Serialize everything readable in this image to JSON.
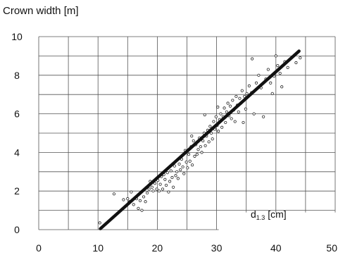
{
  "chart_data": {
    "type": "scatter",
    "ylabel": "Crown width [m]",
    "xlabel_main": "d",
    "xlabel_sub": "1.3",
    "xlabel_unit": " [cm]",
    "xlim": [
      0,
      50
    ],
    "ylim": [
      0,
      10
    ],
    "x_ticks": [
      0,
      10,
      20,
      30,
      40,
      50
    ],
    "y_ticks": [
      0,
      2,
      4,
      6,
      8,
      10
    ],
    "grid": true,
    "fit_line": {
      "x": [
        10.4,
        43.9
      ],
      "y": [
        0.05,
        9.25
      ]
    },
    "points": [
      [
        10.3,
        0.35
      ],
      [
        12.7,
        1.85
      ],
      [
        14.3,
        1.55
      ],
      [
        15.0,
        1.6
      ],
      [
        15.3,
        1.45
      ],
      [
        15.6,
        1.95
      ],
      [
        16.0,
        1.3
      ],
      [
        16.5,
        1.6
      ],
      [
        16.8,
        1.1
      ],
      [
        17.1,
        1.5
      ],
      [
        17.4,
        1.0
      ],
      [
        17.7,
        1.7
      ],
      [
        18.0,
        1.45
      ],
      [
        18.3,
        1.9
      ],
      [
        18.6,
        2.1
      ],
      [
        18.8,
        2.5
      ],
      [
        19.1,
        2.2
      ],
      [
        19.3,
        2.0
      ],
      [
        19.6,
        2.4
      ],
      [
        19.9,
        2.1
      ],
      [
        20.1,
        2.55
      ],
      [
        20.3,
        2.0
      ],
      [
        20.5,
        2.35
      ],
      [
        20.7,
        2.75
      ],
      [
        20.9,
        2.1
      ],
      [
        21.1,
        2.85
      ],
      [
        21.3,
        2.6
      ],
      [
        21.5,
        2.3
      ],
      [
        21.7,
        2.95
      ],
      [
        21.9,
        1.95
      ],
      [
        22.1,
        2.5
      ],
      [
        22.3,
        3.05
      ],
      [
        22.5,
        2.7
      ],
      [
        22.7,
        2.2
      ],
      [
        22.9,
        3.3
      ],
      [
        23.1,
        2.8
      ],
      [
        23.3,
        3.0
      ],
      [
        23.5,
        2.65
      ],
      [
        23.7,
        3.4
      ],
      [
        23.9,
        3.1
      ],
      [
        24.1,
        3.65
      ],
      [
        24.3,
        3.25
      ],
      [
        24.5,
        2.9
      ],
      [
        24.7,
        4.1
      ],
      [
        24.9,
        3.5
      ],
      [
        25.1,
        3.2
      ],
      [
        25.3,
        3.9
      ],
      [
        25.5,
        3.55
      ],
      [
        25.7,
        4.3
      ],
      [
        25.9,
        3.35
      ],
      [
        26.1,
        4.6
      ],
      [
        26.3,
        3.8
      ],
      [
        26.5,
        4.4
      ],
      [
        26.7,
        3.9
      ],
      [
        26.9,
        4.15
      ],
      [
        27.1,
        4.75
      ],
      [
        27.3,
        4.3
      ],
      [
        27.5,
        4.0
      ],
      [
        27.7,
        4.6
      ],
      [
        27.9,
        5.0
      ],
      [
        28.1,
        4.35
      ],
      [
        28.3,
        4.85
      ],
      [
        28.5,
        5.15
      ],
      [
        28.7,
        4.55
      ],
      [
        28.9,
        5.35
      ],
      [
        29.1,
        5.0
      ],
      [
        29.3,
        4.7
      ],
      [
        29.5,
        5.6
      ],
      [
        29.7,
        5.2
      ],
      [
        29.9,
        5.85
      ],
      [
        30.1,
        5.4
      ],
      [
        30.3,
        5.1
      ],
      [
        30.5,
        5.7
      ],
      [
        30.7,
        6.0
      ],
      [
        30.9,
        5.3
      ],
      [
        31.1,
        5.85
      ],
      [
        31.3,
        6.3
      ],
      [
        31.5,
        5.55
      ],
      [
        31.7,
        6.1
      ],
      [
        31.9,
        6.55
      ],
      [
        32.1,
        5.9
      ],
      [
        32.3,
        6.4
      ],
      [
        32.5,
        5.75
      ],
      [
        32.7,
        6.7
      ],
      [
        32.9,
        6.2
      ],
      [
        33.1,
        5.6
      ],
      [
        33.3,
        6.9
      ],
      [
        33.5,
        6.45
      ],
      [
        33.7,
        6.1
      ],
      [
        33.9,
        6.8
      ],
      [
        34.1,
        6.55
      ],
      [
        34.3,
        7.2
      ],
      [
        34.5,
        5.55
      ],
      [
        34.7,
        6.9
      ],
      [
        34.9,
        6.25
      ],
      [
        35.1,
        7.05
      ],
      [
        35.5,
        7.45
      ],
      [
        35.9,
        7.1
      ],
      [
        36.3,
        6.0
      ],
      [
        36.7,
        7.6
      ],
      [
        37.1,
        8.0
      ],
      [
        37.5,
        7.35
      ],
      [
        37.9,
        5.85
      ],
      [
        38.3,
        7.8
      ],
      [
        38.7,
        8.3
      ],
      [
        39.1,
        7.6
      ],
      [
        39.4,
        7.05
      ],
      [
        39.7,
        7.95
      ],
      [
        40.0,
        9.0
      ],
      [
        40.3,
        8.5
      ],
      [
        40.7,
        8.1
      ],
      [
        41.0,
        7.4
      ],
      [
        41.5,
        8.7
      ],
      [
        42.0,
        8.4
      ],
      [
        43.4,
        8.65
      ],
      [
        44.1,
        8.9
      ],
      [
        36.0,
        8.85
      ],
      [
        30.2,
        6.35
      ],
      [
        25.8,
        4.85
      ],
      [
        28.0,
        5.95
      ]
    ]
  }
}
